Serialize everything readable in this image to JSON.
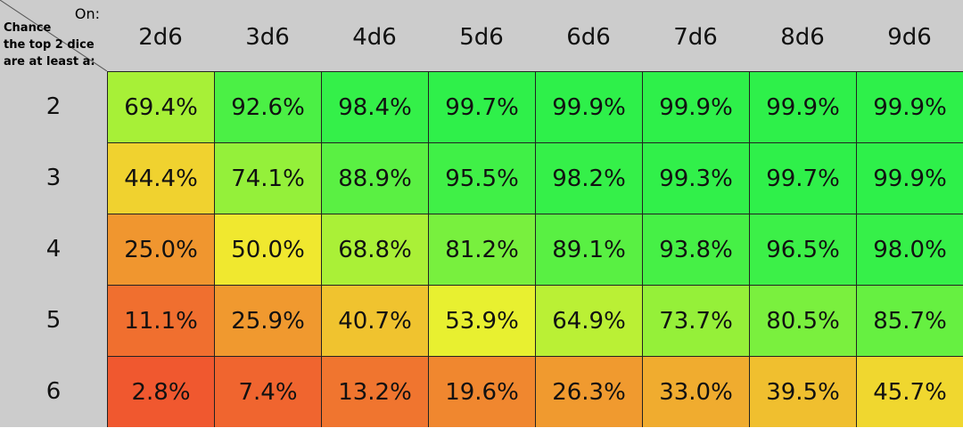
{
  "chart_data": {
    "type": "heatmap",
    "corner": {
      "top_right": "On:",
      "lines": [
        "Chance",
        "the top 2 dice",
        "are at least a:"
      ]
    },
    "columns": [
      "2d6",
      "3d6",
      "4d6",
      "5d6",
      "6d6",
      "7d6",
      "8d6",
      "9d6"
    ],
    "rows": [
      "2",
      "3",
      "4",
      "5",
      "6"
    ],
    "values": [
      [
        "69.4%",
        "92.6%",
        "98.4%",
        "99.7%",
        "99.9%",
        "99.9%",
        "99.9%",
        "99.9%"
      ],
      [
        "44.4%",
        "74.1%",
        "88.9%",
        "95.5%",
        "98.2%",
        "99.3%",
        "99.7%",
        "99.9%"
      ],
      [
        "25.0%",
        "50.0%",
        "68.8%",
        "81.2%",
        "89.1%",
        "93.8%",
        "96.5%",
        "98.0%"
      ],
      [
        "11.1%",
        "25.9%",
        "40.7%",
        "53.9%",
        "64.9%",
        "73.7%",
        "80.5%",
        "85.7%"
      ],
      [
        "2.8%",
        "7.4%",
        "13.2%",
        "19.6%",
        "26.3%",
        "33.0%",
        "39.5%",
        "45.7%"
      ]
    ],
    "color_scale": [
      {
        "stop": 0.0,
        "color": "#f0502f"
      },
      {
        "stop": 0.4,
        "color": "#f0c02f"
      },
      {
        "stop": 0.52,
        "color": "#f0f02f"
      },
      {
        "stop": 0.75,
        "color": "#90f03a"
      },
      {
        "stop": 1.0,
        "color": "#2ef04a"
      }
    ],
    "header_color": "#cccccc",
    "grid_color": "#222222"
  }
}
